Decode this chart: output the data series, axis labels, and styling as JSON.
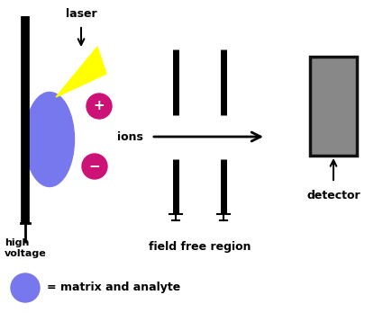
{
  "bg_color": "#ffffff",
  "laser_label": "laser",
  "ions_label": "ions",
  "hv_label": "high\nvoltage",
  "ffr_label": "field free region",
  "detector_label": "detector",
  "legend_label": "= matrix and analyte",
  "ellipse_color": "#7777ee",
  "laser_color": "#ffff00",
  "ion_color": "#cc1177",
  "detector_color": "#888888",
  "detector_border": "#111111"
}
